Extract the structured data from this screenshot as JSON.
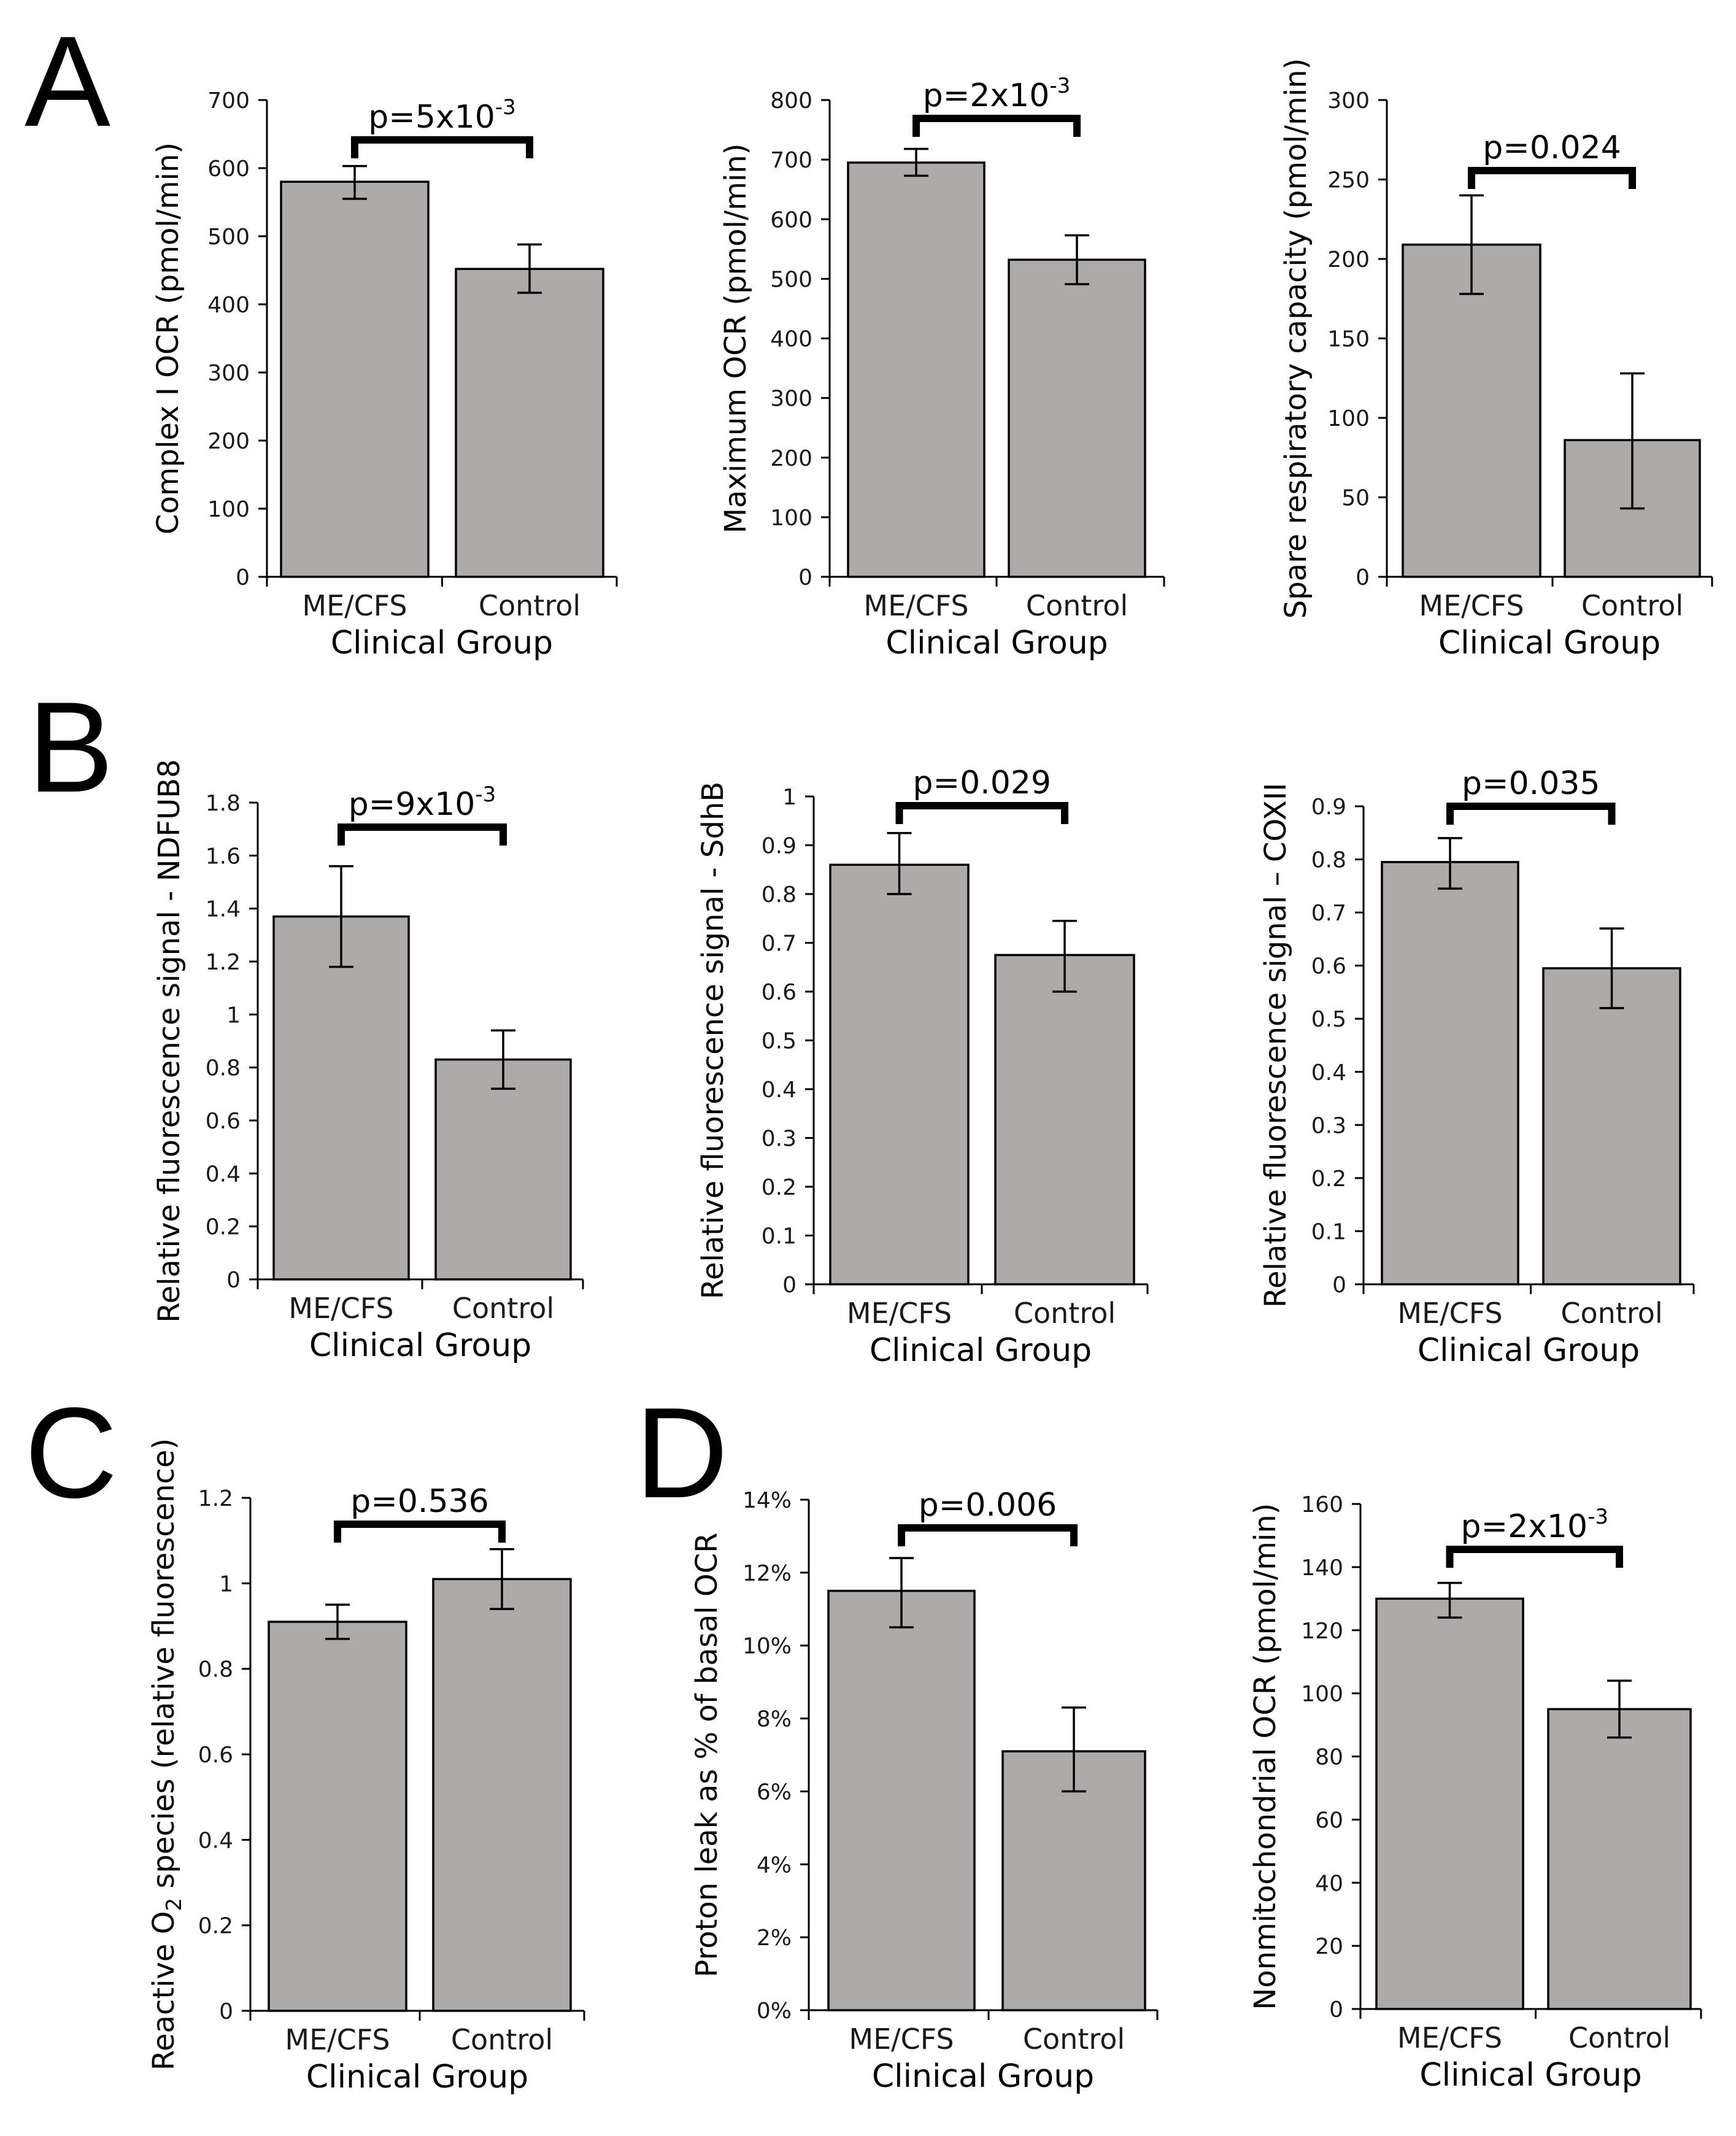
{
  "panel_letters": [
    "A",
    "B",
    "C",
    "D"
  ],
  "chart_data": [
    {
      "id": "A1",
      "type": "bar",
      "title": "",
      "categories": [
        "ME/CFS",
        "Control"
      ],
      "values": [
        580,
        452
      ],
      "errors": [
        [
          555,
          603
        ],
        [
          417,
          488
        ]
      ],
      "ylim": [
        0,
        700
      ],
      "yticks": [
        0,
        100,
        200,
        300,
        400,
        500,
        600,
        700
      ],
      "ytick_labels": [
        "0",
        "100",
        "200",
        "300",
        "400",
        "500",
        "600",
        "700"
      ],
      "xlabel": "Clinical Group",
      "ylabel": "Complex I OCR (pmol/min)",
      "p_value": {
        "prefix": "p=5x10",
        "sup": "-3"
      },
      "bar_color": "#aeaaaa"
    },
    {
      "id": "A2",
      "type": "bar",
      "title": "",
      "categories": [
        "ME/CFS",
        "Control"
      ],
      "values": [
        695,
        532
      ],
      "errors": [
        [
          673,
          718
        ],
        [
          491,
          573
        ]
      ],
      "ylim": [
        0,
        800
      ],
      "yticks": [
        0,
        100,
        200,
        300,
        400,
        500,
        600,
        700,
        800
      ],
      "ytick_labels": [
        "0",
        "100",
        "200",
        "300",
        "400",
        "500",
        "600",
        "700",
        "800"
      ],
      "xlabel": "Clinical Group",
      "ylabel": "Maximum OCR (pmol/min)",
      "p_value": {
        "prefix": "p=2x10",
        "sup": "-3"
      },
      "bar_color": "#aeaaaa"
    },
    {
      "id": "A3",
      "type": "bar",
      "title": "",
      "categories": [
        "ME/CFS",
        "Control"
      ],
      "values": [
        209,
        86
      ],
      "errors": [
        [
          178,
          240
        ],
        [
          43,
          128
        ]
      ],
      "ylim": [
        0,
        300
      ],
      "yticks": [
        0,
        50,
        100,
        150,
        200,
        250,
        300
      ],
      "ytick_labels": [
        "0",
        "50",
        "100",
        "150",
        "200",
        "250",
        "300"
      ],
      "xlabel": "Clinical Group",
      "ylabel": "Spare respiratory capacity (pmol/min)",
      "p_value": {
        "prefix": "p=0.024",
        "sup": ""
      },
      "bar_color": "#aeaaaa"
    },
    {
      "id": "B1",
      "type": "bar",
      "title": "",
      "categories": [
        "ME/CFS",
        "Control"
      ],
      "values": [
        1.37,
        0.83
      ],
      "errors": [
        [
          1.18,
          1.56
        ],
        [
          0.72,
          0.94
        ]
      ],
      "ylim": [
        0,
        1.8
      ],
      "yticks": [
        0,
        0.2,
        0.4,
        0.6,
        0.8,
        1,
        1.2,
        1.4,
        1.6,
        1.8
      ],
      "ytick_labels": [
        "0",
        "0.2",
        "0.4",
        "0.6",
        "0.8",
        "1",
        "1.2",
        "1.4",
        "1.6",
        "1.8"
      ],
      "xlabel": "Clinical Group",
      "ylabel": "Relative fluorescence signal - NDFUB8",
      "p_value": {
        "prefix": "p=9x10",
        "sup": "-3"
      },
      "bar_color": "#aeaaaa"
    },
    {
      "id": "B2",
      "type": "bar",
      "title": "",
      "categories": [
        "ME/CFS",
        "Control"
      ],
      "values": [
        0.86,
        0.675
      ],
      "errors": [
        [
          0.8,
          0.925
        ],
        [
          0.6,
          0.745
        ]
      ],
      "ylim": [
        0,
        1
      ],
      "yticks": [
        0,
        0.1,
        0.2,
        0.3,
        0.4,
        0.5,
        0.6,
        0.7,
        0.8,
        0.9,
        1
      ],
      "ytick_labels": [
        "0",
        "0.1",
        "0.2",
        "0.3",
        "0.4",
        "0.5",
        "0.6",
        "0.7",
        "0.8",
        "0.9",
        "1"
      ],
      "xlabel": "Clinical Group",
      "ylabel": "Relative fluorescence signal - SdhB",
      "p_value": {
        "prefix": "p=0.029",
        "sup": ""
      },
      "bar_color": "#aeaaaa"
    },
    {
      "id": "B3",
      "type": "bar",
      "title": "",
      "categories": [
        "ME/CFS",
        "Control"
      ],
      "values": [
        0.795,
        0.595
      ],
      "errors": [
        [
          0.745,
          0.84
        ],
        [
          0.52,
          0.67
        ]
      ],
      "ylim": [
        0,
        0.9
      ],
      "yticks": [
        0,
        0.1,
        0.2,
        0.3,
        0.4,
        0.5,
        0.6,
        0.7,
        0.8,
        0.9
      ],
      "ytick_labels": [
        "0",
        "0.1",
        "0.2",
        "0.3",
        "0.4",
        "0.5",
        "0.6",
        "0.7",
        "0.8",
        "0.9"
      ],
      "xlabel": "Clinical Group",
      "ylabel": "Relative fluorescence signal – COXII",
      "p_value": {
        "prefix": "p=0.035",
        "sup": ""
      },
      "bar_color": "#aeaaaa"
    },
    {
      "id": "C1",
      "type": "bar",
      "title": "",
      "categories": [
        "ME/CFS",
        "Control"
      ],
      "values": [
        0.91,
        1.01
      ],
      "errors": [
        [
          0.87,
          0.95
        ],
        [
          0.94,
          1.08
        ]
      ],
      "ylim": [
        0,
        1.2
      ],
      "yticks": [
        0,
        0.2,
        0.4,
        0.6,
        0.8,
        1,
        1.2
      ],
      "ytick_labels": [
        "0",
        "0.2",
        "0.4",
        "0.6",
        "0.8",
        "1",
        "1.2"
      ],
      "xlabel": "Clinical Group",
      "ylabel": {
        "pre": "Reactive O",
        "sub": "2",
        "post": " species (relative fluorescence)"
      },
      "p_value": {
        "prefix": "p=0.536",
        "sup": ""
      },
      "bar_color": "#aeaaaa"
    },
    {
      "id": "D1",
      "type": "bar",
      "title": "",
      "categories": [
        "ME/CFS",
        "Control"
      ],
      "values": [
        11.5,
        7.1
      ],
      "errors": [
        [
          10.5,
          12.4
        ],
        [
          6.0,
          8.3
        ]
      ],
      "ylim": [
        0,
        14
      ],
      "yticks": [
        0,
        2,
        4,
        6,
        8,
        10,
        12,
        14
      ],
      "ytick_labels": [
        "0%",
        "2%",
        "4%",
        "6%",
        "8%",
        "10%",
        "12%",
        "14%"
      ],
      "xlabel": "Clinical Group",
      "ylabel": "Proton leak as % of basal OCR",
      "p_value": {
        "prefix": "p=0.006",
        "sup": ""
      },
      "bar_color": "#aeaaaa"
    },
    {
      "id": "D2",
      "type": "bar",
      "title": "",
      "categories": [
        "ME/CFS",
        "Control"
      ],
      "values": [
        130,
        95
      ],
      "errors": [
        [
          124,
          135
        ],
        [
          86,
          104
        ]
      ],
      "ylim": [
        0,
        160
      ],
      "yticks": [
        0,
        20,
        40,
        60,
        80,
        100,
        120,
        140,
        160
      ],
      "ytick_labels": [
        "0",
        "20",
        "40",
        "60",
        "80",
        "100",
        "120",
        "140",
        "160"
      ],
      "xlabel": "Clinical Group",
      "ylabel": "Nonmitochondrial OCR (pmol/min)",
      "p_value": {
        "prefix": "p=2x10",
        "sup": "-3"
      },
      "bar_color": "#aeaaaa"
    }
  ]
}
